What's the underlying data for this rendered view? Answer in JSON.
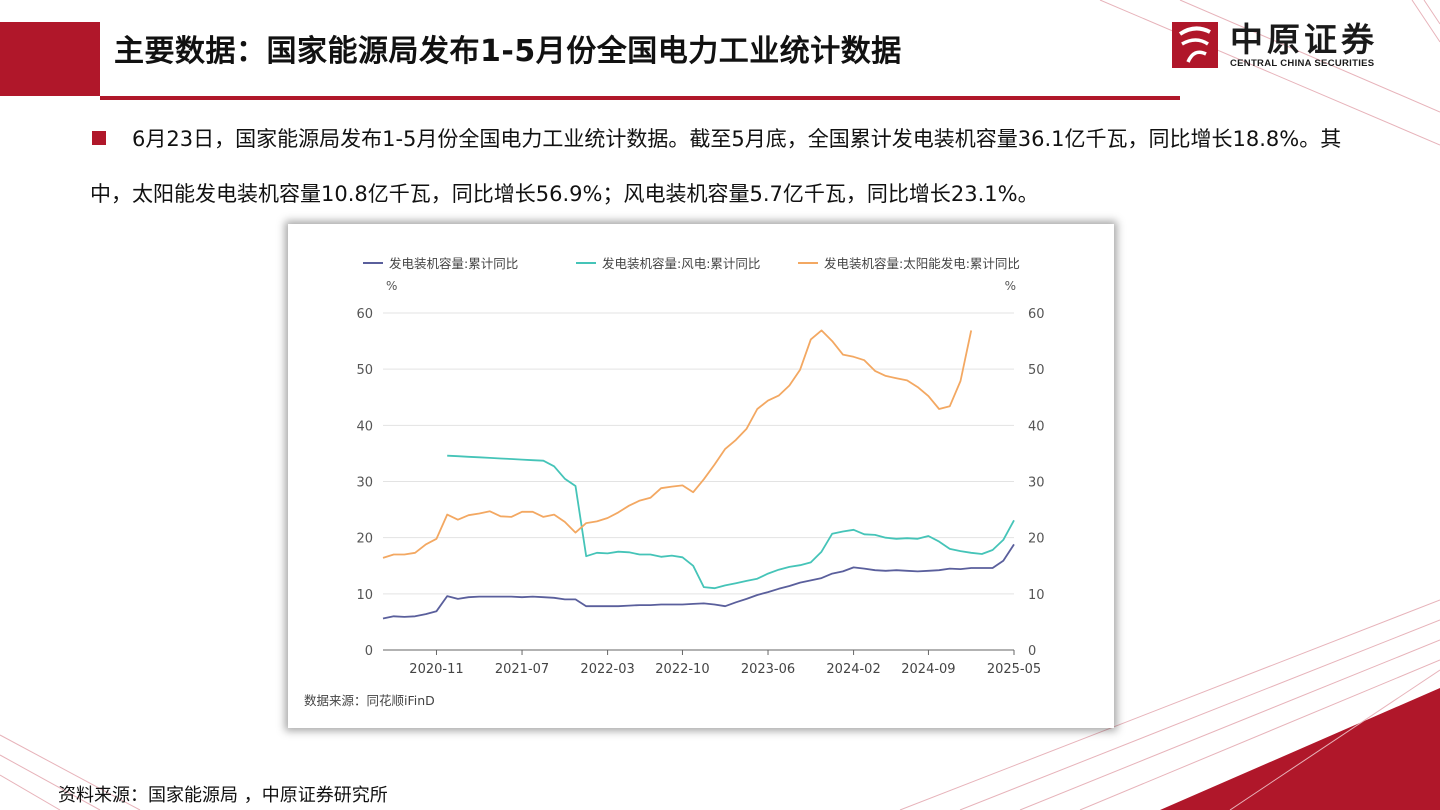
{
  "header": {
    "title": "主要数据：国家能源局发布1-5月份全国电力工业统计数据"
  },
  "logo": {
    "cn": "中原证券",
    "en": "CENTRAL CHINA SECURITIES"
  },
  "body": {
    "paragraph": "6月23日，国家能源局发布1-5月份全国电力工业统计数据。截至5月底，全国累计发电装机容量36.1亿千瓦，同比增长18.8%。其中，太阳能发电装机容量10.8亿千瓦，同比增长56.9%；风电装机容量5.7亿千瓦，同比增长23.1%。"
  },
  "footnote": "资料来源：国家能源局 ，中原证券研究所",
  "colors": {
    "brand_red": "#b0172a",
    "series_total": "#5a5f9c",
    "series_wind": "#45c4b8",
    "series_solar": "#f3a862"
  },
  "chart_data": {
    "type": "line",
    "source_note": "数据来源：同花顺iFinD",
    "unit_left": "%",
    "unit_right": "%",
    "ylim": [
      0,
      60
    ],
    "yticks": [
      0,
      10,
      20,
      30,
      40,
      50,
      60
    ],
    "xlim": [
      "2020-06",
      "2025-05"
    ],
    "xticks": [
      "2020-11",
      "2021-07",
      "2022-03",
      "2022-10",
      "2023-06",
      "2024-02",
      "2024-09",
      "2025-05"
    ],
    "legend_position": "top",
    "grid": "horizontal",
    "series": [
      {
        "name": "发电装机容量:累计同比",
        "color": "#5a5f9c",
        "points": [
          [
            "2020-06",
            5.6
          ],
          [
            "2020-07",
            6.0
          ],
          [
            "2020-08",
            5.9
          ],
          [
            "2020-09",
            6.0
          ],
          [
            "2020-10",
            6.4
          ],
          [
            "2020-11",
            6.9
          ],
          [
            "2020-12",
            9.6
          ],
          [
            "2021-01",
            9.1
          ],
          [
            "2021-02",
            9.4
          ],
          [
            "2021-03",
            9.5
          ],
          [
            "2021-04",
            9.5
          ],
          [
            "2021-05",
            9.5
          ],
          [
            "2021-06",
            9.5
          ],
          [
            "2021-07",
            9.4
          ],
          [
            "2021-08",
            9.5
          ],
          [
            "2021-09",
            9.4
          ],
          [
            "2021-10",
            9.3
          ],
          [
            "2021-11",
            9.0
          ],
          [
            "2021-12",
            9.0
          ],
          [
            "2022-01",
            7.8
          ],
          [
            "2022-02",
            7.8
          ],
          [
            "2022-03",
            7.8
          ],
          [
            "2022-04",
            7.8
          ],
          [
            "2022-05",
            7.9
          ],
          [
            "2022-06",
            8.0
          ],
          [
            "2022-07",
            8.0
          ],
          [
            "2022-08",
            8.1
          ],
          [
            "2022-09",
            8.1
          ],
          [
            "2022-10",
            8.1
          ],
          [
            "2022-11",
            8.2
          ],
          [
            "2022-12",
            8.3
          ],
          [
            "2023-01",
            8.1
          ],
          [
            "2023-02",
            7.8
          ],
          [
            "2023-03",
            8.5
          ],
          [
            "2023-04",
            9.1
          ],
          [
            "2023-05",
            9.8
          ],
          [
            "2023-06",
            10.3
          ],
          [
            "2023-07",
            10.9
          ],
          [
            "2023-08",
            11.4
          ],
          [
            "2023-09",
            12.0
          ],
          [
            "2023-10",
            12.4
          ],
          [
            "2023-11",
            12.8
          ],
          [
            "2023-12",
            13.6
          ],
          [
            "2024-01",
            14.0
          ],
          [
            "2024-02",
            14.7
          ],
          [
            "2024-03",
            14.5
          ],
          [
            "2024-04",
            14.2
          ],
          [
            "2024-05",
            14.1
          ],
          [
            "2024-06",
            14.2
          ],
          [
            "2024-07",
            14.1
          ],
          [
            "2024-08",
            14.0
          ],
          [
            "2024-09",
            14.1
          ],
          [
            "2024-10",
            14.2
          ],
          [
            "2024-11",
            14.5
          ],
          [
            "2024-12",
            14.4
          ],
          [
            "2025-01",
            14.6
          ],
          [
            "2025-02",
            14.6
          ],
          [
            "2025-03",
            14.6
          ],
          [
            "2025-04",
            15.9
          ],
          [
            "2025-05",
            18.8
          ]
        ]
      },
      {
        "name": "发电装机容量:风电:累计同比",
        "color": "#45c4b8",
        "points": [
          [
            "2020-12",
            34.6
          ],
          [
            "2021-01",
            34.5
          ],
          [
            "2021-02",
            34.4
          ],
          [
            "2021-03",
            34.3
          ],
          [
            "2021-04",
            34.2
          ],
          [
            "2021-05",
            34.1
          ],
          [
            "2021-06",
            34.0
          ],
          [
            "2021-07",
            33.9
          ],
          [
            "2021-08",
            33.8
          ],
          [
            "2021-09",
            33.7
          ],
          [
            "2021-10",
            32.7
          ],
          [
            "2021-11",
            30.5
          ],
          [
            "2021-12",
            29.2
          ],
          [
            "2022-01",
            16.7
          ],
          [
            "2022-02",
            17.3
          ],
          [
            "2022-03",
            17.2
          ],
          [
            "2022-04",
            17.5
          ],
          [
            "2022-05",
            17.4
          ],
          [
            "2022-06",
            17.0
          ],
          [
            "2022-07",
            17.0
          ],
          [
            "2022-08",
            16.6
          ],
          [
            "2022-09",
            16.8
          ],
          [
            "2022-10",
            16.5
          ],
          [
            "2022-11",
            15.0
          ],
          [
            "2022-12",
            11.2
          ],
          [
            "2023-01",
            11.0
          ],
          [
            "2023-02",
            11.5
          ],
          [
            "2023-03",
            11.9
          ],
          [
            "2023-04",
            12.3
          ],
          [
            "2023-05",
            12.7
          ],
          [
            "2023-06",
            13.6
          ],
          [
            "2023-07",
            14.3
          ],
          [
            "2023-08",
            14.8
          ],
          [
            "2023-09",
            15.1
          ],
          [
            "2023-10",
            15.6
          ],
          [
            "2023-11",
            17.5
          ],
          [
            "2023-12",
            20.7
          ],
          [
            "2024-01",
            21.1
          ],
          [
            "2024-02",
            21.4
          ],
          [
            "2024-03",
            20.6
          ],
          [
            "2024-04",
            20.5
          ],
          [
            "2024-05",
            20.0
          ],
          [
            "2024-06",
            19.8
          ],
          [
            "2024-07",
            19.9
          ],
          [
            "2024-08",
            19.8
          ],
          [
            "2024-09",
            20.3
          ],
          [
            "2024-10",
            19.3
          ],
          [
            "2024-11",
            18.0
          ],
          [
            "2024-12",
            17.6
          ],
          [
            "2025-01",
            17.3
          ],
          [
            "2025-02",
            17.1
          ],
          [
            "2025-03",
            17.8
          ],
          [
            "2025-04",
            19.6
          ],
          [
            "2025-05",
            23.1
          ]
        ]
      },
      {
        "name": "发电装机容量:太阳能发电:累计同比",
        "color": "#f3a862",
        "points": [
          [
            "2020-06",
            16.4
          ],
          [
            "2020-07",
            17.0
          ],
          [
            "2020-08",
            17.0
          ],
          [
            "2020-09",
            17.3
          ],
          [
            "2020-10",
            18.8
          ],
          [
            "2020-11",
            19.8
          ],
          [
            "2020-12",
            24.1
          ],
          [
            "2021-01",
            23.2
          ],
          [
            "2021-02",
            24.0
          ],
          [
            "2021-03",
            24.3
          ],
          [
            "2021-04",
            24.7
          ],
          [
            "2021-05",
            23.8
          ],
          [
            "2021-06",
            23.7
          ],
          [
            "2021-07",
            24.6
          ],
          [
            "2021-08",
            24.6
          ],
          [
            "2021-09",
            23.7
          ],
          [
            "2021-10",
            24.1
          ],
          [
            "2021-11",
            22.8
          ],
          [
            "2021-12",
            20.9
          ],
          [
            "2022-01",
            22.6
          ],
          [
            "2022-02",
            22.9
          ],
          [
            "2022-03",
            23.5
          ],
          [
            "2022-04",
            24.5
          ],
          [
            "2022-05",
            25.7
          ],
          [
            "2022-06",
            26.6
          ],
          [
            "2022-07",
            27.1
          ],
          [
            "2022-08",
            28.8
          ],
          [
            "2022-09",
            29.1
          ],
          [
            "2022-10",
            29.3
          ],
          [
            "2022-11",
            28.1
          ],
          [
            "2022-12",
            30.4
          ],
          [
            "2023-01",
            33.0
          ],
          [
            "2023-02",
            35.8
          ],
          [
            "2023-03",
            37.4
          ],
          [
            "2023-04",
            39.4
          ],
          [
            "2023-05",
            42.9
          ],
          [
            "2023-06",
            44.4
          ],
          [
            "2023-07",
            45.3
          ],
          [
            "2023-08",
            47.1
          ],
          [
            "2023-09",
            49.9
          ],
          [
            "2023-10",
            55.3
          ],
          [
            "2023-11",
            56.9
          ],
          [
            "2023-12",
            55.0
          ],
          [
            "2024-01",
            52.6
          ],
          [
            "2024-02",
            52.2
          ],
          [
            "2024-03",
            51.6
          ],
          [
            "2024-04",
            49.7
          ],
          [
            "2024-05",
            48.8
          ],
          [
            "2024-06",
            48.4
          ],
          [
            "2024-07",
            48.0
          ],
          [
            "2024-08",
            46.8
          ],
          [
            "2024-09",
            45.2
          ],
          [
            "2024-10",
            42.9
          ],
          [
            "2024-11",
            43.4
          ],
          [
            "2024-12",
            47.9
          ],
          [
            "2025-01",
            56.9
          ]
        ]
      }
    ]
  }
}
